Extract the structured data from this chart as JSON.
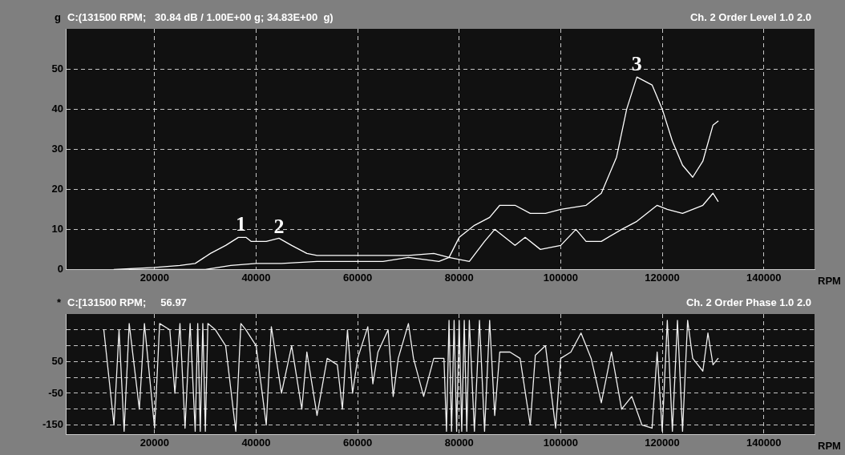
{
  "chart_data": [
    {
      "type": "line",
      "title": "C:(131500 RPM;   30.84 dB / 1.00E+00 g; 34.83E+00  g)",
      "subtitle": "Ch. 2 Order Level 1.0 2.0",
      "xlabel": "RPM",
      "ylabel": "g",
      "xlim": [
        2500,
        150000
      ],
      "xticks": [
        20000,
        40000,
        60000,
        80000,
        100000,
        120000,
        140000
      ],
      "ylim": [
        0,
        60
      ],
      "yticks": [
        0,
        10,
        20,
        30,
        40,
        50
      ],
      "grid": true,
      "legend": false,
      "marker": "none",
      "line_style": "solid",
      "annotations": [
        {
          "text": "1",
          "x": 37000,
          "y": 8
        },
        {
          "text": "2",
          "x": 44500,
          "y": 7.5
        },
        {
          "text": "3",
          "x": 115000,
          "y": 48
        }
      ],
      "series": [
        {
          "color": "#ffffff",
          "x": [
            12000,
            20000,
            25000,
            28000,
            31000,
            34000,
            36500,
            38000,
            39000,
            42000,
            44500,
            47000,
            50000,
            52000,
            60000,
            70000,
            75000,
            78000,
            80000,
            83000,
            86000,
            88000,
            91000,
            94000,
            97000,
            100000,
            105000,
            108000,
            111000,
            113000,
            115000,
            118000,
            120000,
            122000,
            124000,
            126000,
            128000,
            130000,
            131000
          ],
          "values": [
            0,
            0.5,
            1,
            1.5,
            4,
            6,
            8,
            8,
            7,
            7,
            7.8,
            6,
            4,
            3.5,
            3.5,
            3.5,
            4,
            3,
            8,
            11,
            13,
            16,
            16,
            14,
            14,
            15,
            16,
            19,
            28,
            40,
            48,
            46,
            40,
            32,
            26,
            23,
            27,
            36,
            37
          ]
        },
        {
          "color": "#ffffff",
          "x": [
            15000,
            30000,
            35000,
            40000,
            45000,
            52000,
            65000,
            70000,
            76000,
            78000,
            82000,
            85000,
            87000,
            89000,
            91000,
            93000,
            96000,
            100000,
            103000,
            105000,
            108000,
            112000,
            115000,
            119000,
            121000,
            124000,
            128000,
            130000,
            131000
          ],
          "values": [
            0,
            0,
            1,
            1.5,
            1.5,
            2,
            2,
            3,
            2,
            3,
            2,
            7,
            10,
            8,
            6,
            8,
            5,
            6,
            10,
            7,
            7,
            10,
            12,
            16,
            15,
            14,
            16,
            19,
            17
          ]
        }
      ]
    },
    {
      "type": "line",
      "title": "C:[131500 RPM;     56.97",
      "subtitle": "Ch. 2 Order Phase 1.0 2.0",
      "xlabel": "RPM",
      "ylabel": "*",
      "xlim": [
        2500,
        150000
      ],
      "xticks": [
        20000,
        40000,
        60000,
        80000,
        100000,
        120000,
        140000
      ],
      "ylim": [
        -180,
        200
      ],
      "yticks": [
        {
          "value": 150,
          "label": null
        },
        {
          "value": 100,
          "label": null
        },
        50,
        {
          "value": 0,
          "label": null
        },
        -50,
        {
          "value": -100,
          "label": null
        },
        -150
      ],
      "grid": true,
      "legend": false,
      "marker": "none",
      "line_style": "solid",
      "series": [
        {
          "color": "#f0f0f0",
          "x": [
            10000,
            12000,
            13000,
            14000,
            15000,
            17000,
            18000,
            20000,
            21000,
            23000,
            24000,
            25000,
            26000,
            27000,
            28000,
            28500,
            29000,
            29500,
            30000,
            30500,
            32000,
            34000,
            36000,
            37000,
            38000,
            40000,
            42000,
            43000,
            45000,
            47000,
            49000,
            50000,
            52000,
            54000,
            56000,
            57000,
            58000,
            59000,
            60000,
            62000,
            63000,
            64000,
            66000,
            67000,
            68000,
            70000,
            71000,
            73000,
            75000,
            77000,
            77500,
            78000,
            78500,
            79000,
            79500,
            80000,
            80500,
            81000,
            81500,
            82000,
            83000,
            84000,
            85000,
            86000,
            87000,
            88000,
            90000,
            92000,
            94000,
            95000,
            97000,
            99000,
            100000,
            102000,
            104000,
            106000,
            108000,
            110000,
            112000,
            114000,
            116000,
            118000,
            119000,
            120000,
            121000,
            122000,
            123000,
            124000,
            125000,
            126000,
            128000,
            129000,
            130000,
            131000
          ],
          "values": [
            150,
            -150,
            150,
            -170,
            170,
            -100,
            170,
            -160,
            170,
            150,
            -50,
            170,
            -160,
            170,
            -170,
            170,
            -170,
            170,
            -170,
            170,
            150,
            100,
            -170,
            170,
            150,
            100,
            -150,
            160,
            -50,
            100,
            -100,
            80,
            -120,
            60,
            40,
            -100,
            150,
            -50,
            60,
            160,
            -20,
            80,
            150,
            -60,
            60,
            170,
            60,
            -60,
            60,
            60,
            -170,
            180,
            -170,
            180,
            -170,
            180,
            -170,
            180,
            -170,
            180,
            -170,
            180,
            -170,
            180,
            -120,
            80,
            80,
            60,
            -150,
            70,
            100,
            -160,
            60,
            80,
            140,
            60,
            -80,
            80,
            -100,
            -60,
            -150,
            -160,
            80,
            -170,
            180,
            -170,
            180,
            -170,
            180,
            60,
            20,
            140,
            40,
            60
          ]
        }
      ]
    }
  ]
}
